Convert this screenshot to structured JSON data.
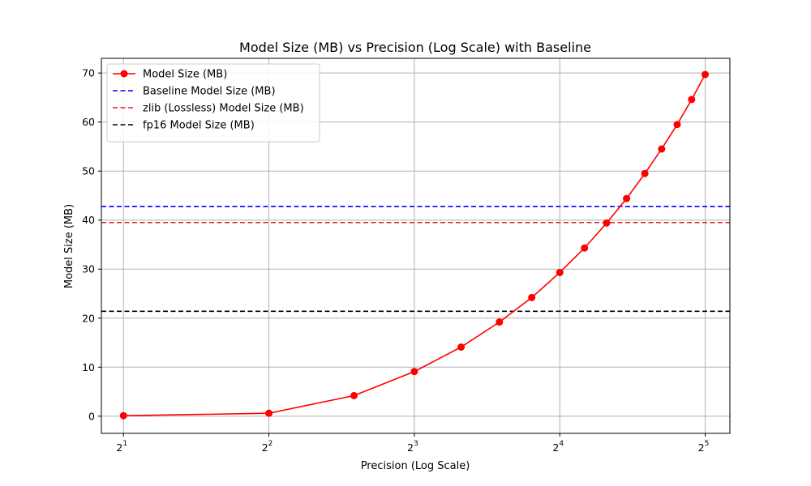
{
  "chart_data": {
    "type": "line",
    "title": "Model Size (MB) vs Precision (Log Scale) with Baseline",
    "xlabel": "Precision (Log Scale)",
    "ylabel": "Model Size (MB)",
    "x_scale": "log2",
    "xlim": [
      1.8,
      36
    ],
    "ylim": [
      -3.5,
      73
    ],
    "x_ticks": [
      {
        "value": 2,
        "base": "2",
        "exp": "1"
      },
      {
        "value": 4,
        "base": "2",
        "exp": "2"
      },
      {
        "value": 8,
        "base": "2",
        "exp": "3"
      },
      {
        "value": 16,
        "base": "2",
        "exp": "4"
      },
      {
        "value": 32,
        "base": "2",
        "exp": "5"
      }
    ],
    "y_ticks": [
      0,
      10,
      20,
      30,
      40,
      50,
      60,
      70
    ],
    "grid": true,
    "legend_position": "top-left",
    "series": [
      {
        "name": "Model Size (MB)",
        "style": "solid-marker",
        "color": "#ff0000",
        "x": [
          2,
          4,
          6,
          8,
          10,
          12,
          14,
          16,
          18,
          20,
          22,
          24,
          26,
          28,
          30,
          32
        ],
        "y": [
          0.1,
          0.6,
          4.2,
          9.1,
          14.1,
          19.2,
          24.2,
          29.3,
          34.3,
          39.4,
          44.4,
          49.5,
          54.5,
          59.5,
          64.6,
          69.7
        ]
      }
    ],
    "reference_lines": [
      {
        "name": "Baseline Model Size (MB)",
        "y": 42.8,
        "color": "#0000ff",
        "style": "dashed"
      },
      {
        "name": "zlib (Lossless) Model Size (MB)",
        "y": 39.5,
        "color": "#d62728",
        "style": "dashed"
      },
      {
        "name": "fp16 Model Size (MB)",
        "y": 21.4,
        "color": "#000000",
        "style": "dashed"
      }
    ]
  }
}
